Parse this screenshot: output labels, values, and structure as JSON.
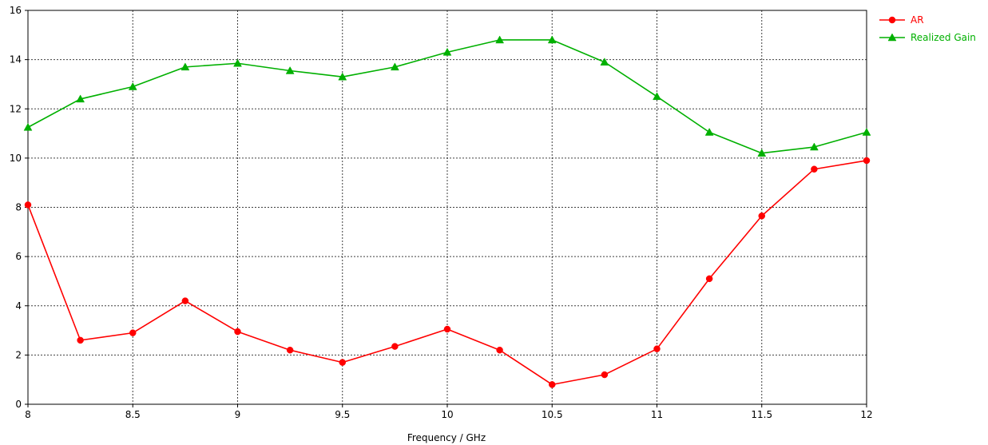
{
  "chart_data": {
    "type": "line",
    "title": "",
    "xlabel": "Frequency / GHz",
    "ylabel": "",
    "xlim": [
      8,
      12
    ],
    "ylim": [
      0,
      16
    ],
    "x_ticks": [
      "8",
      "8.5",
      "9",
      "9.5",
      "10",
      "10.5",
      "11",
      "11.5",
      "12"
    ],
    "y_ticks": [
      "0",
      "2",
      "4",
      "6",
      "8",
      "10",
      "12",
      "14",
      "16"
    ],
    "grid": true,
    "legend_position": "top-right",
    "x": [
      8,
      8.25,
      8.5,
      8.75,
      9,
      9.25,
      9.5,
      9.75,
      10,
      10.25,
      10.5,
      10.75,
      11,
      11.25,
      11.5,
      11.75,
      12
    ],
    "series": [
      {
        "name": "AR",
        "color": "#ff0000",
        "marker": "circle",
        "values": [
          8.1,
          2.6,
          2.9,
          4.2,
          2.95,
          2.2,
          1.7,
          2.35,
          3.05,
          2.2,
          0.8,
          1.2,
          2.25,
          5.1,
          7.65,
          9.55,
          9.9
        ]
      },
      {
        "name": "Realized Gain",
        "color": "#00b000",
        "marker": "triangle",
        "values": [
          11.25,
          12.4,
          12.9,
          13.7,
          13.85,
          13.55,
          13.3,
          13.7,
          14.3,
          14.8,
          14.8,
          13.9,
          12.5,
          11.05,
          10.2,
          10.45,
          11.05
        ]
      }
    ]
  }
}
